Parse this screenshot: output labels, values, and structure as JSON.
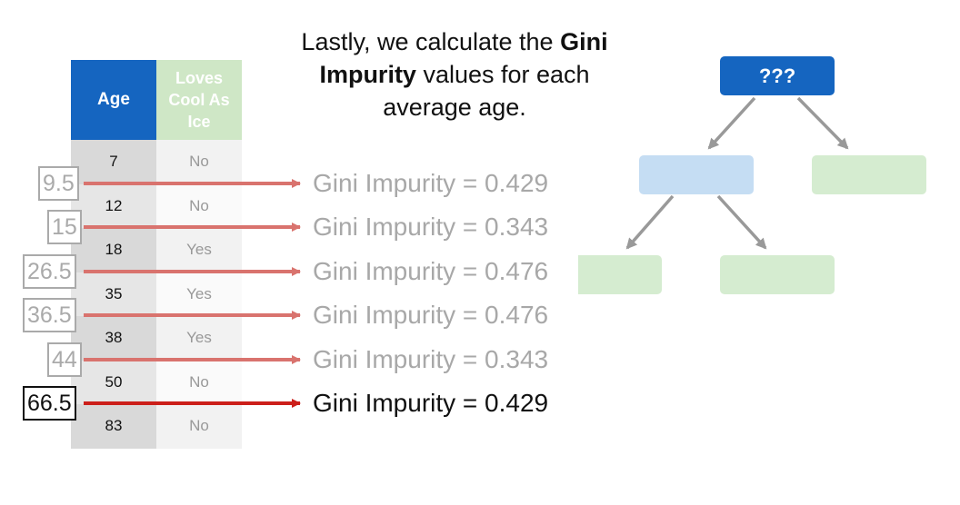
{
  "caption": {
    "line1_pre": "Lastly, we calculate the ",
    "line1_bold": "Gini",
    "line2_bold": "Impurity",
    "line2_post": " values for each",
    "line3": "average age."
  },
  "table": {
    "header_age": "Age",
    "header_loves": "Loves Cool As Ice",
    "rows": [
      {
        "age": "7",
        "loves": "No"
      },
      {
        "age": "12",
        "loves": "No"
      },
      {
        "age": "18",
        "loves": "Yes"
      },
      {
        "age": "35",
        "loves": "Yes"
      },
      {
        "age": "38",
        "loves": "Yes"
      },
      {
        "age": "50",
        "loves": "No"
      },
      {
        "age": "83",
        "loves": "No"
      }
    ]
  },
  "averages": [
    {
      "value": "9.5",
      "gini": "Gini Impurity = 0.429"
    },
    {
      "value": "15",
      "gini": "Gini Impurity = 0.343"
    },
    {
      "value": "26.5",
      "gini": "Gini Impurity = 0.476"
    },
    {
      "value": "36.5",
      "gini": "Gini Impurity = 0.476"
    },
    {
      "value": "44",
      "gini": "Gini Impurity = 0.343"
    },
    {
      "value": "66.5",
      "gini": "Gini Impurity = 0.429"
    }
  ],
  "tree": {
    "root_label": "???"
  },
  "colors": {
    "arrow_faded": "#d9736e",
    "arrow_active": "#cc1f1a",
    "tree_arrow": "#999999",
    "root_blue": "#1565c0"
  }
}
